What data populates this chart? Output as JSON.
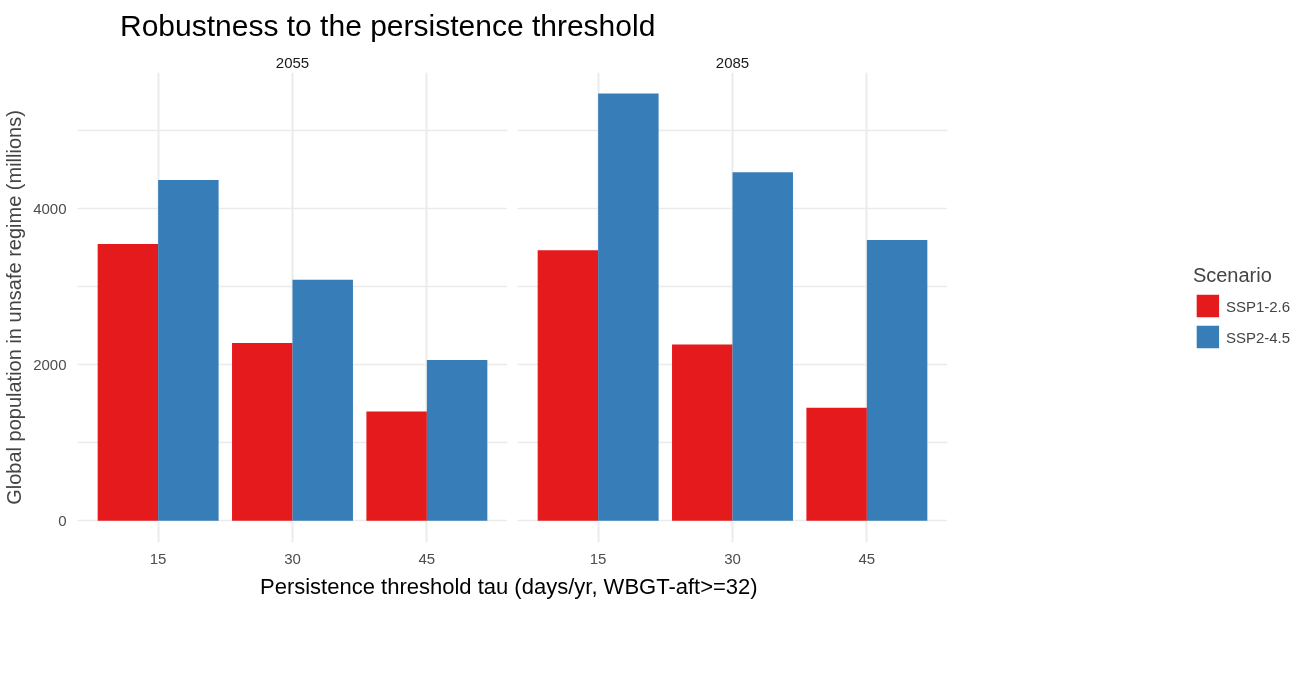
{
  "chart_data": [
    {
      "type": "bar",
      "title": "Robustness to the persistence threshold",
      "subtitle": "2055",
      "xlabel": "Persistence threshold tau (days/yr, WBGT-aft>=32)",
      "ylabel": "Global population in unsafe regime (millions)",
      "categories": [
        "15",
        "30",
        "45"
      ],
      "series": [
        {
          "color": "#e41a1c",
          "values": [
            3550,
            2280,
            1400
          ]
        },
        {
          "color": "#377eb8",
          "values": [
            4370,
            3090,
            2060
          ]
        }
      ],
      "ylim": [
        -280,
        5750
      ],
      "yticks": [
        0,
        {
          "value": 1000,
          "label": null
        },
        2000,
        {
          "value": 3000,
          "label": null
        },
        4000,
        {
          "value": 5000,
          "label": null
        }
      ],
      "grid": true,
      "legend": false
    },
    {
      "type": "bar",
      "subtitle": "2085",
      "legend_title": "Scenario",
      "categories": [
        "15",
        "30",
        "45"
      ],
      "series": [
        {
          "name": "SSP1-2.6",
          "color": "#e41a1c",
          "values": [
            3470,
            2260,
            1450
          ]
        },
        {
          "name": "SSP2-4.5",
          "color": "#377eb8",
          "values": [
            5480,
            4470,
            3600
          ]
        }
      ],
      "ylim": [
        -280,
        5750
      ],
      "yticks": [
        0,
        {
          "value": 1000,
          "label": null
        },
        2000,
        {
          "value": 3000,
          "label": null
        },
        4000,
        {
          "value": 5000,
          "label": null
        }
      ],
      "grid": true,
      "legend": "right",
      "tick_labels": "x"
    }
  ]
}
